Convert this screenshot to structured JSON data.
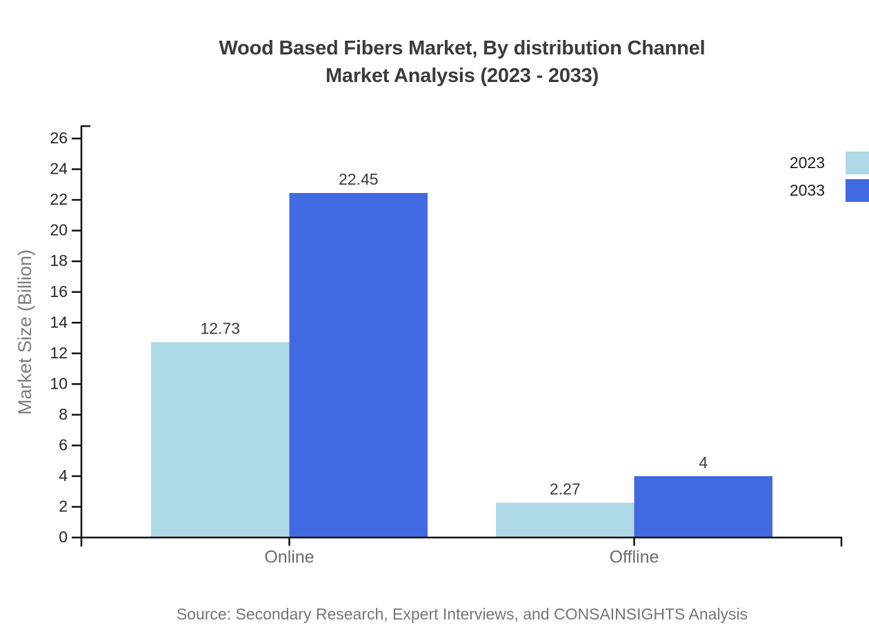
{
  "chart_data": {
    "type": "bar",
    "title": "Wood Based Fibers Market, By distribution Channel Market Analysis (2023 - 2033)",
    "title_lines": [
      "Wood Based Fibers Market, By distribution Channel",
      "Market Analysis (2023 - 2033)"
    ],
    "categories": [
      "Online",
      "Offline"
    ],
    "series": [
      {
        "name": "2023",
        "color": "#ADD8E6",
        "values": [
          12.73,
          2.27
        ],
        "labels": [
          "12.73",
          "2.27"
        ]
      },
      {
        "name": "2033",
        "color": "#4169E1",
        "values": [
          22.45,
          4
        ],
        "labels": [
          "22.45",
          "4"
        ]
      }
    ],
    "xlabel": "",
    "ylabel": "Market Size (Billion)",
    "ylim": [
      0,
      26
    ],
    "ytick_step": 2,
    "grid": false,
    "legend_position": "top-right",
    "source": "Source: Secondary Research, Expert Interviews, and CONSAINSIGHTS Analysis"
  },
  "colors": {
    "axis": "#111111",
    "title": "#3b3b3b",
    "tick_label": "#262626",
    "value_label": "#3a3a3a",
    "category_label": "#6b6b6b",
    "ylabel": "#7d7d7d",
    "source": "#757575",
    "background": "#ffffff"
  }
}
